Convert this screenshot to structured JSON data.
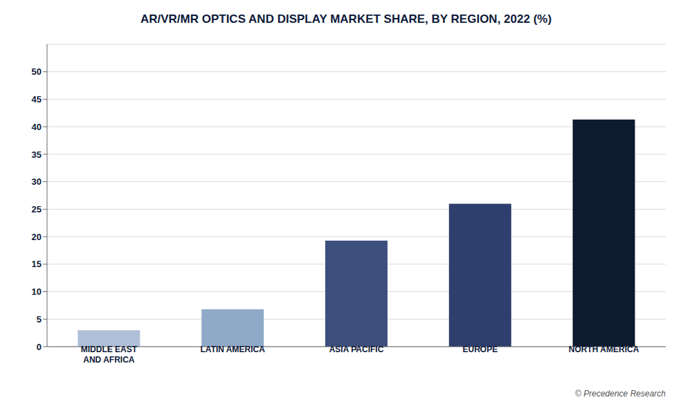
{
  "chart_data": {
    "type": "bar",
    "title": "AR/VR/MR OPTICS AND DISPLAY MARKET SHARE, BY REGION, 2022 (%)",
    "categories": [
      "MIDDLE EAST\nAND AFRICA",
      "LATIN AMERICA",
      "ASIA PACIFIC",
      "EUROPE",
      "NORTH AMERICA"
    ],
    "values": [
      3.0,
      6.8,
      19.3,
      26.0,
      41.3
    ],
    "colors": [
      "#b0bfd8",
      "#8faac8",
      "#3d4f7c",
      "#2e3f6e",
      "#0d1b2e"
    ],
    "ylim": [
      0,
      55
    ],
    "yticks": [
      0,
      5,
      10,
      15,
      20,
      25,
      30,
      35,
      40,
      45,
      50
    ],
    "grid": true,
    "annotations": [
      "© Precedence Research"
    ]
  }
}
